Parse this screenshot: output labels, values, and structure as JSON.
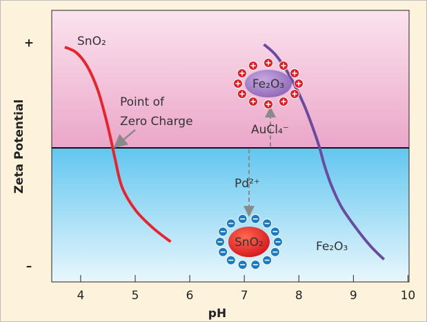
{
  "chart_data": {
    "type": "line",
    "xlabel": "pH",
    "ylabel": "Zeta Potential",
    "xlim": [
      3.47,
      10.02
    ],
    "xticks": [
      4,
      5,
      6,
      7,
      8,
      9,
      10
    ],
    "ylim": [
      -0.985,
      1.01
    ],
    "yticks": [
      {
        "value": 0.77,
        "label": "+"
      },
      {
        "value": -0.87,
        "label": "–"
      }
    ],
    "zero_line": true,
    "series": [
      {
        "name": "SnO₂",
        "color": "#e8232b",
        "x": [
          3.71,
          3.92,
          4.12,
          4.31,
          4.46,
          4.56,
          4.63,
          4.76,
          5.01,
          5.33,
          5.65
        ],
        "values": [
          0.74,
          0.7,
          0.6,
          0.43,
          0.22,
          0.05,
          -0.08,
          -0.29,
          -0.46,
          -0.59,
          -0.69
        ]
      },
      {
        "name": "Fe₂O₃",
        "color": "#6a4b9e",
        "x": [
          7.36,
          7.58,
          7.83,
          8.09,
          8.28,
          8.38,
          8.47,
          8.6,
          8.79,
          9.05,
          9.31,
          9.56
        ],
        "values": [
          0.76,
          0.68,
          0.53,
          0.32,
          0.12,
          0,
          -0.13,
          -0.28,
          -0.44,
          -0.59,
          -0.72,
          -0.82
        ]
      }
    ],
    "annotations": {
      "point_of_zero_charge": [
        "Point of",
        "Zero Charge"
      ],
      "positive_particle": "Fe₂O₃",
      "negative_particle": "SnO₂",
      "anion": "AuCl₄⁻",
      "cation": "Pd²⁺"
    }
  }
}
